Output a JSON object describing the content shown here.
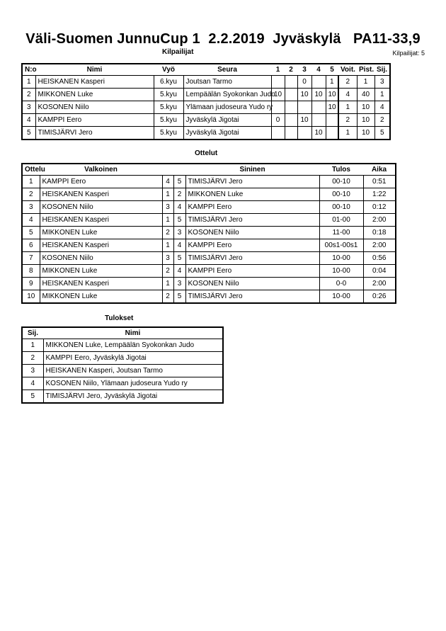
{
  "header": {
    "title": "Väli-Suomen JunnuCup 1  2.2.2019  Jyväskylä   PA11-33,9",
    "competitors_heading": "Kilpailijat",
    "competitors_count": "Kilpailijat: 5"
  },
  "competitors": {
    "columns": [
      "N:o",
      "Nimi",
      "Vyö",
      "Seura",
      "1",
      "2",
      "3",
      "4",
      "5",
      "Voit.",
      "Pist.",
      "Sij."
    ],
    "rows": [
      [
        "1",
        "HEISKANEN Kasperi",
        "6.kyu",
        "Joutsan Tarmo",
        "",
        "",
        "0",
        "",
        "1",
        "2",
        "1",
        "3"
      ],
      [
        "2",
        "MIKKONEN Luke",
        "5.kyu",
        "Lempäälän Syokonkan Judo",
        "10",
        "",
        "10",
        "10",
        "10",
        "4",
        "40",
        "1"
      ],
      [
        "3",
        "KOSONEN Niilo",
        "5.kyu",
        "Ylämaan judoseura Yudo ry",
        "",
        "",
        "",
        "",
        "10",
        "1",
        "10",
        "4"
      ],
      [
        "4",
        "KAMPPI Eero",
        "5.kyu",
        "Jyväskylä Jigotai",
        "0",
        "",
        "10",
        "",
        "",
        "2",
        "10",
        "2"
      ],
      [
        "5",
        "TIMISJÄRVI Jero",
        "5.kyu",
        "Jyväskylä Jigotai",
        "",
        "",
        "",
        "10",
        "",
        "1",
        "10",
        "5"
      ]
    ]
  },
  "matches": {
    "heading": "Ottelut",
    "columns": [
      "Ottelu",
      "Valkoinen",
      "",
      "",
      "Sininen",
      "Tulos",
      "Aika"
    ],
    "rows": [
      [
        "1",
        "KAMPPI Eero",
        "4",
        "5",
        "TIMISJÄRVI Jero",
        "00-10",
        "0:51"
      ],
      [
        "2",
        "HEISKANEN Kasperi",
        "1",
        "2",
        "MIKKONEN Luke",
        "00-10",
        "1:22"
      ],
      [
        "3",
        "KOSONEN Niilo",
        "3",
        "4",
        "KAMPPI Eero",
        "00-10",
        "0:12"
      ],
      [
        "4",
        "HEISKANEN Kasperi",
        "1",
        "5",
        "TIMISJÄRVI Jero",
        "01-00",
        "2:00"
      ],
      [
        "5",
        "MIKKONEN Luke",
        "2",
        "3",
        "KOSONEN Niilo",
        "11-00",
        "0:18"
      ],
      [
        "6",
        "HEISKANEN Kasperi",
        "1",
        "4",
        "KAMPPI Eero",
        "00s1-00s1",
        "2:00"
      ],
      [
        "7",
        "KOSONEN Niilo",
        "3",
        "5",
        "TIMISJÄRVI Jero",
        "10-00",
        "0:56"
      ],
      [
        "8",
        "MIKKONEN Luke",
        "2",
        "4",
        "KAMPPI Eero",
        "10-00",
        "0:04"
      ],
      [
        "9",
        "HEISKANEN Kasperi",
        "1",
        "3",
        "KOSONEN Niilo",
        "0-0",
        "2:00"
      ],
      [
        "10",
        "MIKKONEN Luke",
        "2",
        "5",
        "TIMISJÄRVI Jero",
        "10-00",
        "0:26"
      ]
    ]
  },
  "results": {
    "heading": "Tulokset",
    "columns": [
      "Sij.",
      "Nimi"
    ],
    "rows": [
      [
        "1",
        "MIKKONEN Luke, Lempäälän Syokonkan Judo"
      ],
      [
        "2",
        "KAMPPI Eero, Jyväskylä Jigotai"
      ],
      [
        "3",
        "HEISKANEN Kasperi, Joutsan Tarmo"
      ],
      [
        "4",
        "KOSONEN Niilo, Ylämaan judoseura Yudo ry"
      ],
      [
        "5",
        "TIMISJÄRVI Jero, Jyväskylä Jigotai"
      ]
    ]
  }
}
